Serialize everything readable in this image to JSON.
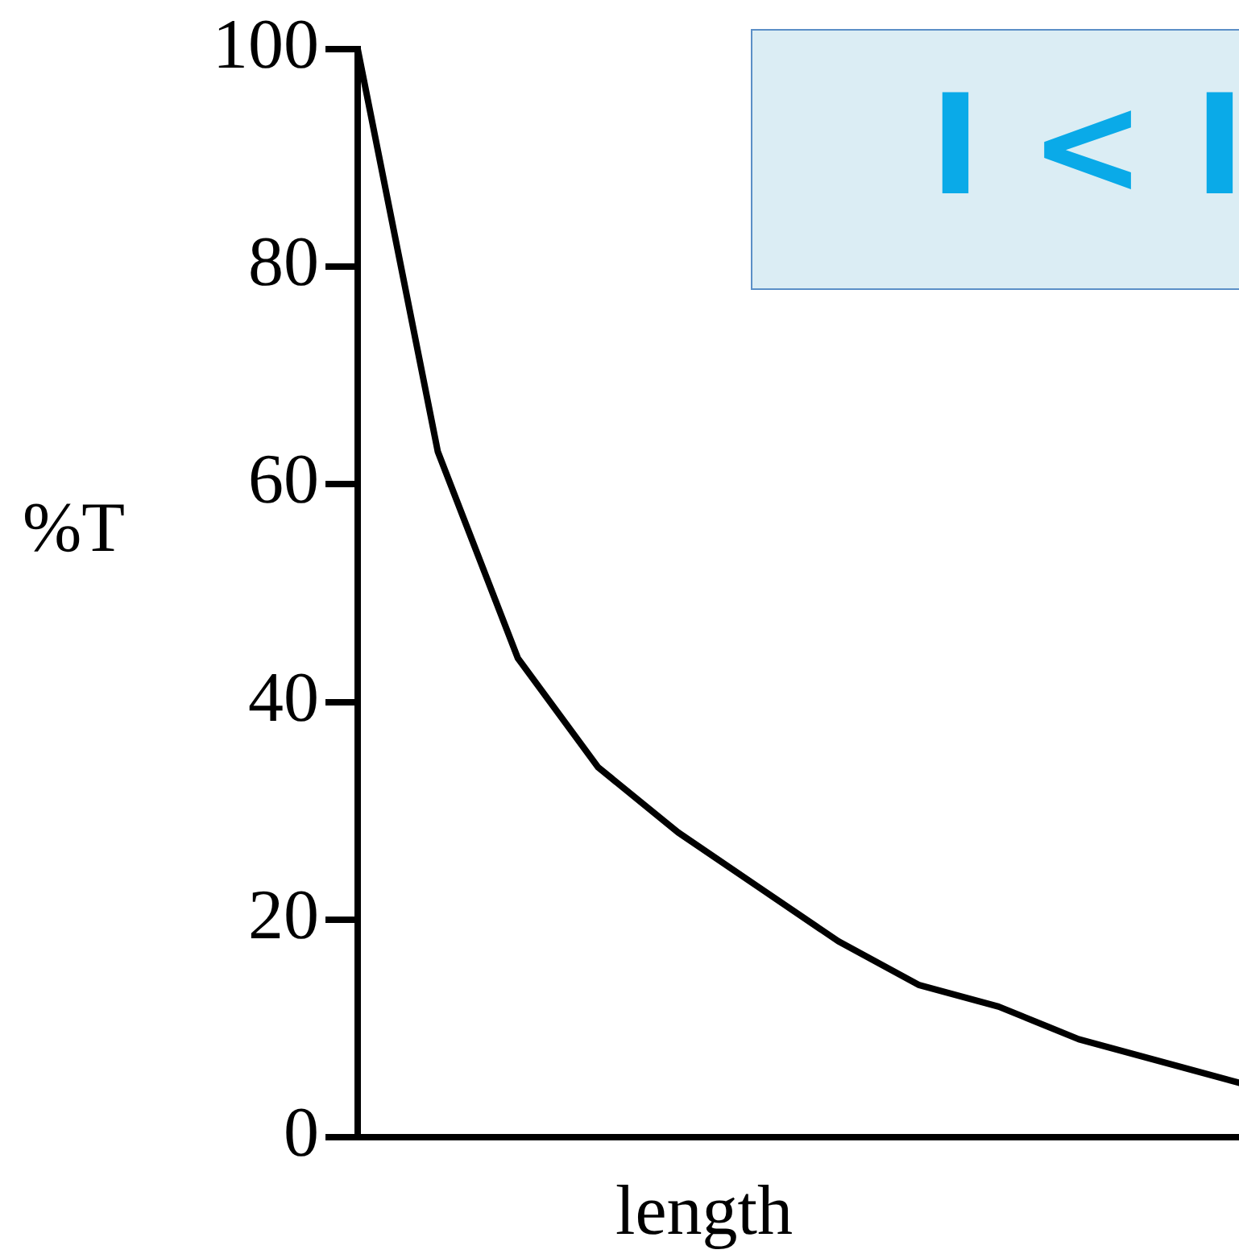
{
  "chart_data": {
    "type": "line",
    "xlabel": "length",
    "ylabel": "%T",
    "annotations": [
      "I < I"
    ],
    "categories": [
      null,
      null,
      null,
      null,
      null,
      null,
      null,
      null,
      null,
      null,
      null,
      null
    ],
    "series": [
      {
        "color": "#000000",
        "values": [
          100,
          63,
          44,
          34,
          28,
          23,
          18,
          14,
          12,
          9,
          7,
          5
        ]
      }
    ],
    "ylim": [
      0,
      100
    ],
    "yticks": [
      0,
      20,
      40,
      60,
      80,
      100
    ],
    "tick_labels": "y",
    "grid": false,
    "legend": false,
    "marker": "none",
    "line_style": "solid"
  }
}
